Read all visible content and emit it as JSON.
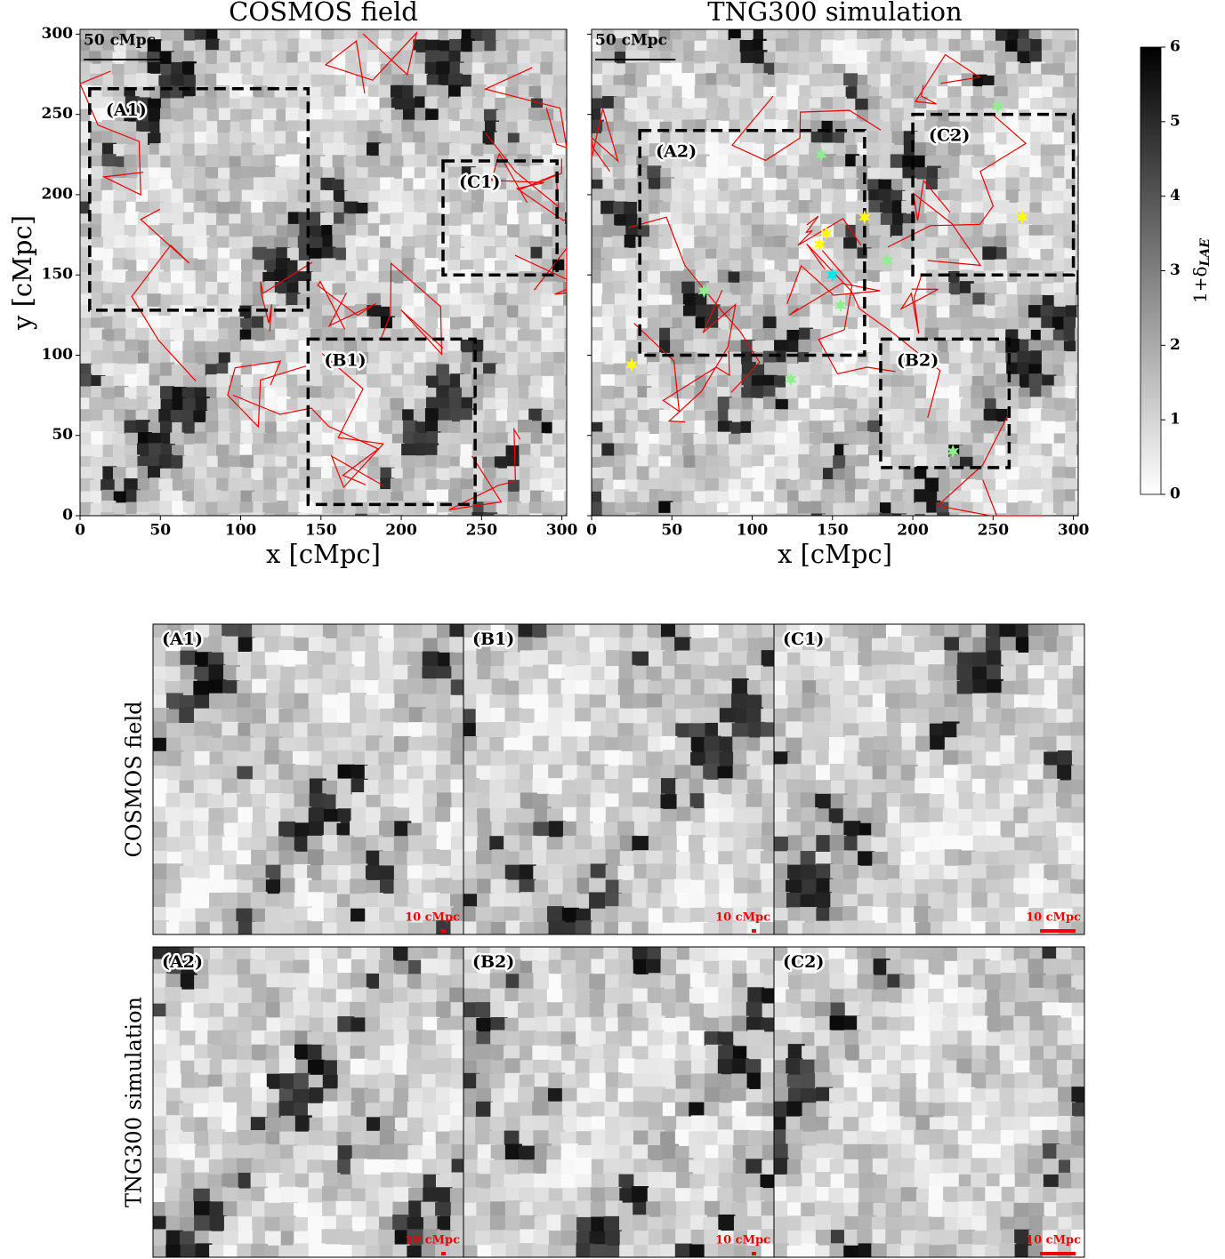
{
  "chart_data": [
    {
      "type": "map",
      "title": "COSMOS field",
      "xlabel": "x [cMpc]",
      "ylabel": "y [cMpc]",
      "xlim": [
        0,
        303
      ],
      "ylim": [
        0,
        303
      ],
      "xticks": [
        0,
        50,
        100,
        150,
        200,
        250,
        300
      ],
      "yticks": [
        0,
        50,
        100,
        150,
        200,
        250,
        300
      ],
      "scale_bar": "50 cMpc",
      "regions": [
        {
          "label": "(A1)",
          "x": [
            6,
            142
          ],
          "y": [
            128,
            266
          ]
        },
        {
          "label": "(B1)",
          "x": [
            142,
            246
          ],
          "y": [
            7,
            110
          ]
        },
        {
          "label": "(C1)",
          "x": [
            226,
            297
          ],
          "y": [
            150,
            221
          ]
        }
      ]
    },
    {
      "type": "map",
      "title": "TNG300 simulation",
      "xlabel": "x [cMpc]",
      "xlim": [
        0,
        303
      ],
      "ylim": [
        0,
        303
      ],
      "xticks": [
        0,
        50,
        100,
        150,
        200,
        250,
        300
      ],
      "yticks": [
        0,
        50,
        100,
        150,
        200,
        250,
        300
      ],
      "scale_bar": "50 cMpc",
      "regions": [
        {
          "label": "(A2)",
          "x": [
            30,
            170
          ],
          "y": [
            100,
            240
          ]
        },
        {
          "label": "(B2)",
          "x": [
            180,
            260
          ],
          "y": [
            30,
            110
          ]
        },
        {
          "label": "(C2)",
          "x": [
            200,
            300
          ],
          "y": [
            150,
            250
          ]
        }
      ],
      "series": [
        {
          "color": "#ffff00",
          "marker": "star",
          "x": [
            25,
            142,
            146,
            170,
            268
          ],
          "y": [
            94,
            169,
            176,
            186,
            186
          ]
        },
        {
          "color": "#00e5ee",
          "marker": "star",
          "x": [
            150
          ],
          "y": [
            150
          ]
        },
        {
          "color": "#90ee90",
          "marker": "star",
          "x": [
            143,
            70,
            184,
            155,
            124,
            225,
            253
          ],
          "y": [
            225,
            140,
            159,
            131,
            85,
            40,
            255
          ]
        }
      ]
    },
    {
      "type": "colorbar",
      "label": "1+δ",
      "subscript": "LAE",
      "ylim": [
        0,
        6
      ],
      "yticks": [
        0,
        1,
        2,
        3,
        4,
        5,
        6
      ]
    },
    {
      "type": "zoom-grid",
      "rows": [
        "COSMOS field",
        "TNG300 simulation"
      ],
      "labels": [
        [
          "(A1)",
          "(B1)",
          "(C1)"
        ],
        [
          "(A2)",
          "(B2)",
          "(C2)"
        ]
      ],
      "scale_bar": "10 cMpc"
    }
  ]
}
